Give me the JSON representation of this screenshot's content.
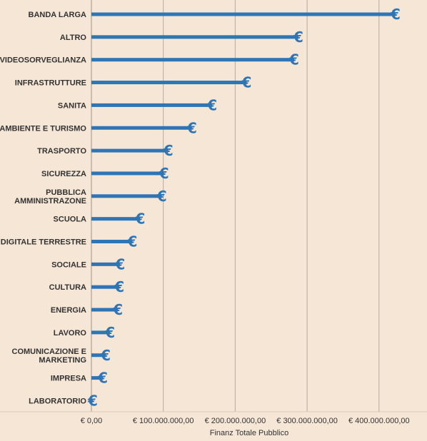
{
  "chart_data": {
    "type": "bar",
    "orientation": "horizontal",
    "categories": [
      "BANDA LARGA",
      "ALTRO",
      "VIDEOSORVEGLIANZA",
      "INFRASTRUTTURE",
      "SANITA",
      "AMBIENTE E TURISMO",
      "TRASPORTO",
      "SICUREZZA",
      "PUBBLICA AMMINISTRAZONE",
      "SCUOLA",
      "DIGITALE TERRESTRE",
      "SOCIALE",
      "CULTURA",
      "ENERGIA",
      "LAVORO",
      "COMUNICAZIONE E MARKETING",
      "IMPRESA",
      "LABORATORIO"
    ],
    "category_lines": [
      [
        "BANDA LARGA"
      ],
      [
        "ALTRO"
      ],
      [
        "VIDEOSORVEGLIANZA"
      ],
      [
        "INFRASTRUTTURE"
      ],
      [
        "SANITA"
      ],
      [
        "AMBIENTE E TURISMO"
      ],
      [
        "TRASPORTO"
      ],
      [
        "SICUREZZA"
      ],
      [
        "PUBBLICA",
        "AMMINISTRAZONE"
      ],
      [
        "SCUOLA"
      ],
      [
        "DIGITALE TERRESTRE"
      ],
      [
        "SOCIALE"
      ],
      [
        "CULTURA"
      ],
      [
        "ENERGIA"
      ],
      [
        "LAVORO"
      ],
      [
        "COMUNICAZIONE E",
        "MARKETING"
      ],
      [
        "IMPRESA"
      ],
      [
        "LABORATORIO"
      ]
    ],
    "values": [
      423000000,
      288000000,
      282000000,
      216000000,
      168000000,
      140000000,
      107000000,
      101000000,
      98000000,
      68000000,
      57000000,
      40000000,
      39000000,
      37000000,
      26000000,
      20000000,
      16000000,
      2000000
    ],
    "xlabel": "Finanz Totale Pubblico",
    "xlim": [
      0,
      440000000
    ],
    "ticks": [
      0,
      100000000,
      200000000,
      300000000,
      400000000
    ],
    "tick_labels": [
      "€ 0,00",
      "€ 100.000.000,00",
      "€ 200.000.000,00",
      "€ 300.000.000,00",
      "€ 400.000.000,00"
    ],
    "marker": "€",
    "grid": "vertical",
    "colors": {
      "bar": "#2e75b6",
      "background": "#f5e6d6",
      "grid": "#b5aa9e",
      "text": "#333333"
    }
  }
}
